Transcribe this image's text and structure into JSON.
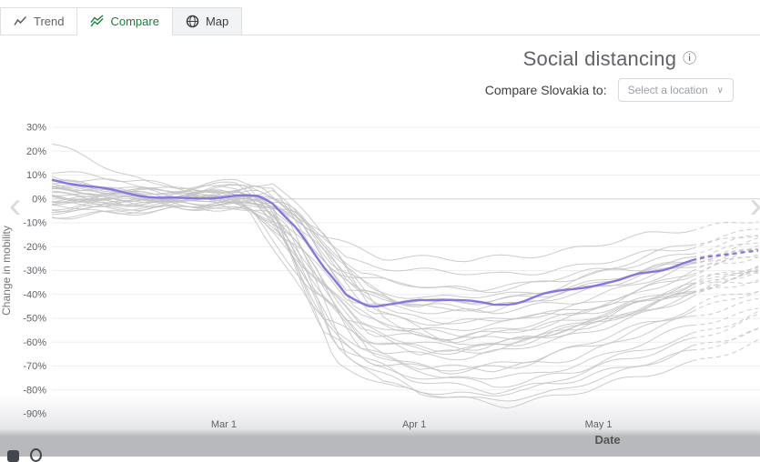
{
  "tabs": [
    {
      "label": "Trend",
      "active": false
    },
    {
      "label": "Compare",
      "active": true
    },
    {
      "label": "Map",
      "active": false
    }
  ],
  "header": {
    "title": "Social distancing",
    "info_glyph": "ⓘ"
  },
  "compare": {
    "label": "Compare Slovakia to:",
    "dropdown_placeholder": "Select a location",
    "chevron_glyph": "∨"
  },
  "navigation": {
    "prev_glyph": "‹",
    "next_glyph": "›"
  },
  "colors": {
    "accent_green": "#188038",
    "highlight_purple": "#8477e0",
    "background_line_gray": "#c3c3c3"
  },
  "chart_data": {
    "type": "line",
    "title": "Social distancing",
    "xlabel": "Date",
    "ylabel": "Change in mobility",
    "ylim": [
      -90,
      30
    ],
    "ytick_values": [
      30,
      20,
      10,
      0,
      -10,
      -20,
      -30,
      -40,
      -50,
      -60,
      -70,
      -80,
      -90
    ],
    "ytick_suffix": "%",
    "x_domain_days": [
      0,
      115
    ],
    "xticks": [
      {
        "label": "Mar 1",
        "day": 28
      },
      {
        "label": "Apr 1",
        "day": 59
      },
      {
        "label": "May 1",
        "day": 89
      }
    ],
    "dashed_from_day": 105,
    "grid": true,
    "legend_position": "none",
    "highlight_series": {
      "name": "Slovakia",
      "points": [
        [
          0,
          8
        ],
        [
          6,
          5
        ],
        [
          12,
          3
        ],
        [
          18,
          0.5
        ],
        [
          22,
          0
        ],
        [
          26,
          0.5
        ],
        [
          30,
          1
        ],
        [
          34,
          0.5
        ],
        [
          36,
          -2
        ],
        [
          40,
          -12
        ],
        [
          44,
          -28
        ],
        [
          48,
          -40
        ],
        [
          52,
          -45
        ],
        [
          56,
          -44.5
        ],
        [
          60,
          -42.5
        ],
        [
          64,
          -42
        ],
        [
          68,
          -43
        ],
        [
          72,
          -44
        ],
        [
          76,
          -43
        ],
        [
          80,
          -40
        ],
        [
          84,
          -38
        ],
        [
          88,
          -36.5
        ],
        [
          92,
          -35
        ],
        [
          96,
          -31
        ],
        [
          100,
          -29
        ],
        [
          104,
          -26
        ],
        [
          108,
          -23.5
        ],
        [
          112,
          -22
        ],
        [
          115,
          -22
        ]
      ]
    },
    "background_series": [
      [
        [
          0,
          23
        ],
        [
          8,
          14
        ],
        [
          16,
          6
        ],
        [
          24,
          6
        ],
        [
          30,
          8
        ],
        [
          36,
          4
        ],
        [
          42,
          -20
        ],
        [
          50,
          -38
        ],
        [
          60,
          -45
        ],
        [
          75,
          -42
        ],
        [
          90,
          -30
        ],
        [
          105,
          -18
        ],
        [
          115,
          -12
        ]
      ],
      [
        [
          0,
          5
        ],
        [
          15,
          2
        ],
        [
          28,
          3
        ],
        [
          36,
          -5
        ],
        [
          44,
          -55
        ],
        [
          52,
          -68
        ],
        [
          62,
          -72
        ],
        [
          75,
          -70
        ],
        [
          88,
          -60
        ],
        [
          100,
          -50
        ],
        [
          115,
          -38
        ]
      ],
      [
        [
          0,
          2
        ],
        [
          20,
          0
        ],
        [
          30,
          2
        ],
        [
          38,
          -8
        ],
        [
          46,
          -60
        ],
        [
          54,
          -78
        ],
        [
          64,
          -82
        ],
        [
          78,
          -80
        ],
        [
          90,
          -70
        ],
        [
          105,
          -58
        ],
        [
          115,
          -50
        ]
      ],
      [
        [
          0,
          -2
        ],
        [
          18,
          -1
        ],
        [
          30,
          1
        ],
        [
          40,
          -18
        ],
        [
          48,
          -52
        ],
        [
          58,
          -60
        ],
        [
          70,
          -62
        ],
        [
          85,
          -55
        ],
        [
          100,
          -42
        ],
        [
          115,
          -30
        ]
      ],
      [
        [
          0,
          6
        ],
        [
          12,
          3
        ],
        [
          24,
          1
        ],
        [
          32,
          5
        ],
        [
          40,
          -5
        ],
        [
          48,
          -35
        ],
        [
          56,
          -48
        ],
        [
          68,
          -52
        ],
        [
          82,
          -48
        ],
        [
          95,
          -40
        ],
        [
          108,
          -28
        ],
        [
          115,
          -24
        ]
      ],
      [
        [
          0,
          0
        ],
        [
          25,
          -2
        ],
        [
          35,
          -3
        ],
        [
          43,
          -30
        ],
        [
          50,
          -62
        ],
        [
          60,
          -70
        ],
        [
          72,
          -72
        ],
        [
          85,
          -66
        ],
        [
          98,
          -55
        ],
        [
          110,
          -45
        ],
        [
          115,
          -42
        ]
      ],
      [
        [
          0,
          3
        ],
        [
          20,
          1
        ],
        [
          33,
          4
        ],
        [
          41,
          -10
        ],
        [
          49,
          -45
        ],
        [
          57,
          -55
        ],
        [
          70,
          -58
        ],
        [
          84,
          -50
        ],
        [
          97,
          -38
        ],
        [
          110,
          -26
        ],
        [
          115,
          -22
        ]
      ],
      [
        [
          0,
          -5
        ],
        [
          15,
          -3
        ],
        [
          28,
          0
        ],
        [
          38,
          -15
        ],
        [
          46,
          -68
        ],
        [
          56,
          -80
        ],
        [
          68,
          -84
        ],
        [
          80,
          -82
        ],
        [
          92,
          -74
        ],
        [
          104,
          -62
        ],
        [
          115,
          -55
        ]
      ],
      [
        [
          0,
          8
        ],
        [
          10,
          5
        ],
        [
          22,
          2
        ],
        [
          32,
          6
        ],
        [
          42,
          -25
        ],
        [
          50,
          -55
        ],
        [
          60,
          -65
        ],
        [
          74,
          -62
        ],
        [
          88,
          -52
        ],
        [
          102,
          -40
        ],
        [
          115,
          -32
        ]
      ],
      [
        [
          0,
          1
        ],
        [
          20,
          -1
        ],
        [
          34,
          2
        ],
        [
          44,
          -40
        ],
        [
          52,
          -65
        ],
        [
          64,
          -72
        ],
        [
          78,
          -68
        ],
        [
          92,
          -58
        ],
        [
          106,
          -44
        ],
        [
          115,
          -38
        ]
      ],
      [
        [
          0,
          -3
        ],
        [
          18,
          -2
        ],
        [
          30,
          -1
        ],
        [
          40,
          -20
        ],
        [
          48,
          -42
        ],
        [
          58,
          -46
        ],
        [
          72,
          -48
        ],
        [
          86,
          -42
        ],
        [
          100,
          -32
        ],
        [
          115,
          -20
        ]
      ],
      [
        [
          0,
          4
        ],
        [
          14,
          2
        ],
        [
          26,
          0
        ],
        [
          36,
          3
        ],
        [
          44,
          -18
        ],
        [
          52,
          -38
        ],
        [
          62,
          -42
        ],
        [
          76,
          -40
        ],
        [
          90,
          -34
        ],
        [
          104,
          -26
        ],
        [
          115,
          -20
        ]
      ],
      [
        [
          0,
          0
        ],
        [
          22,
          1
        ],
        [
          34,
          -2
        ],
        [
          42,
          -35
        ],
        [
          50,
          -58
        ],
        [
          62,
          -64
        ],
        [
          76,
          -60
        ],
        [
          90,
          -50
        ],
        [
          104,
          -36
        ],
        [
          115,
          -28
        ]
      ],
      [
        [
          0,
          -6
        ],
        [
          16,
          -4
        ],
        [
          28,
          -2
        ],
        [
          38,
          -10
        ],
        [
          46,
          -30
        ],
        [
          56,
          -36
        ],
        [
          70,
          -38
        ],
        [
          84,
          -34
        ],
        [
          98,
          -28
        ],
        [
          112,
          -20
        ],
        [
          115,
          -18
        ]
      ],
      [
        [
          0,
          2
        ],
        [
          18,
          0
        ],
        [
          32,
          3
        ],
        [
          42,
          -28
        ],
        [
          50,
          -50
        ],
        [
          60,
          -55
        ],
        [
          74,
          -52
        ],
        [
          88,
          -44
        ],
        [
          102,
          -32
        ],
        [
          115,
          -24
        ]
      ],
      [
        [
          0,
          10
        ],
        [
          10,
          7
        ],
        [
          22,
          3
        ],
        [
          34,
          5
        ],
        [
          44,
          -15
        ],
        [
          52,
          -45
        ],
        [
          64,
          -58
        ],
        [
          78,
          -55
        ],
        [
          92,
          -46
        ],
        [
          106,
          -34
        ],
        [
          115,
          -28
        ]
      ],
      [
        [
          0,
          -1
        ],
        [
          20,
          -3
        ],
        [
          32,
          -4
        ],
        [
          42,
          -45
        ],
        [
          52,
          -70
        ],
        [
          64,
          -76
        ],
        [
          78,
          -74
        ],
        [
          92,
          -64
        ],
        [
          106,
          -52
        ],
        [
          115,
          -46
        ]
      ],
      [
        [
          0,
          3
        ],
        [
          16,
          1
        ],
        [
          30,
          4
        ],
        [
          40,
          -5
        ],
        [
          48,
          -25
        ],
        [
          58,
          -30
        ],
        [
          72,
          -32
        ],
        [
          86,
          -28
        ],
        [
          100,
          -22
        ],
        [
          115,
          -14
        ]
      ],
      [
        [
          0,
          -8
        ],
        [
          14,
          -5
        ],
        [
          26,
          -3
        ],
        [
          36,
          -8
        ],
        [
          46,
          -55
        ],
        [
          58,
          -72
        ],
        [
          72,
          -78
        ],
        [
          86,
          -72
        ],
        [
          100,
          -60
        ],
        [
          115,
          -48
        ]
      ],
      [
        [
          0,
          5
        ],
        [
          18,
          3
        ],
        [
          30,
          6
        ],
        [
          40,
          -8
        ],
        [
          48,
          -38
        ],
        [
          58,
          -44
        ],
        [
          72,
          -46
        ],
        [
          86,
          -40
        ],
        [
          100,
          -30
        ],
        [
          115,
          -22
        ]
      ],
      [
        [
          0,
          1
        ],
        [
          24,
          0
        ],
        [
          36,
          -6
        ],
        [
          44,
          -50
        ],
        [
          54,
          -64
        ],
        [
          68,
          -66
        ],
        [
          82,
          -60
        ],
        [
          96,
          -48
        ],
        [
          110,
          -36
        ],
        [
          115,
          -34
        ]
      ],
      [
        [
          0,
          -4
        ],
        [
          20,
          -2
        ],
        [
          34,
          1
        ],
        [
          44,
          -22
        ],
        [
          52,
          -48
        ],
        [
          64,
          -52
        ],
        [
          78,
          -50
        ],
        [
          92,
          -44
        ],
        [
          106,
          -36
        ],
        [
          115,
          -30
        ]
      ],
      [
        [
          0,
          7
        ],
        [
          12,
          4
        ],
        [
          26,
          1
        ],
        [
          38,
          -3
        ],
        [
          46,
          -28
        ],
        [
          56,
          -42
        ],
        [
          70,
          -44
        ],
        [
          84,
          -38
        ],
        [
          98,
          -30
        ],
        [
          112,
          -22
        ],
        [
          115,
          -20
        ]
      ],
      [
        [
          0,
          0
        ],
        [
          18,
          -2
        ],
        [
          32,
          0
        ],
        [
          42,
          -30
        ],
        [
          52,
          -56
        ],
        [
          66,
          -60
        ],
        [
          80,
          -56
        ],
        [
          94,
          -46
        ],
        [
          108,
          -34
        ],
        [
          115,
          -30
        ]
      ],
      [
        [
          0,
          -2
        ],
        [
          22,
          -4
        ],
        [
          36,
          -2
        ],
        [
          46,
          -60
        ],
        [
          58,
          -76
        ],
        [
          72,
          -80
        ],
        [
          86,
          -76
        ],
        [
          100,
          -66
        ],
        [
          115,
          -56
        ]
      ],
      [
        [
          0,
          4
        ],
        [
          16,
          2
        ],
        [
          30,
          5
        ],
        [
          42,
          -12
        ],
        [
          50,
          -40
        ],
        [
          62,
          -46
        ],
        [
          76,
          -44
        ],
        [
          90,
          -36
        ],
        [
          104,
          -26
        ],
        [
          115,
          -18
        ]
      ],
      [
        [
          0,
          -7
        ],
        [
          18,
          -5
        ],
        [
          32,
          -3
        ],
        [
          42,
          -38
        ],
        [
          52,
          -60
        ],
        [
          66,
          -64
        ],
        [
          80,
          -58
        ],
        [
          94,
          -48
        ],
        [
          108,
          -38
        ],
        [
          115,
          -34
        ]
      ],
      [
        [
          0,
          12
        ],
        [
          10,
          8
        ],
        [
          24,
          4
        ],
        [
          36,
          7
        ],
        [
          46,
          -20
        ],
        [
          54,
          -50
        ],
        [
          66,
          -62
        ],
        [
          80,
          -58
        ],
        [
          94,
          -48
        ],
        [
          108,
          -36
        ],
        [
          115,
          -30
        ]
      ],
      [
        [
          0,
          2
        ],
        [
          20,
          0
        ],
        [
          34,
          -1
        ],
        [
          44,
          -15
        ],
        [
          54,
          -24
        ],
        [
          68,
          -26
        ],
        [
          82,
          -22
        ],
        [
          96,
          -16
        ],
        [
          110,
          -10
        ],
        [
          115,
          -8
        ]
      ],
      [
        [
          0,
          -1
        ],
        [
          24,
          -2
        ],
        [
          38,
          -4
        ],
        [
          48,
          -65
        ],
        [
          60,
          -82
        ],
        [
          74,
          -86
        ],
        [
          88,
          -80
        ],
        [
          102,
          -70
        ],
        [
          115,
          -60
        ]
      ],
      [
        [
          0,
          6
        ],
        [
          14,
          4
        ],
        [
          28,
          2
        ],
        [
          40,
          -6
        ],
        [
          50,
          -32
        ],
        [
          62,
          -38
        ],
        [
          76,
          -36
        ],
        [
          90,
          -30
        ],
        [
          104,
          -22
        ],
        [
          115,
          -16
        ]
      ],
      [
        [
          0,
          -3
        ],
        [
          16,
          -1
        ],
        [
          30,
          2
        ],
        [
          40,
          -25
        ],
        [
          50,
          -52
        ],
        [
          62,
          -58
        ],
        [
          76,
          -54
        ],
        [
          90,
          -46
        ],
        [
          104,
          -36
        ],
        [
          115,
          -28
        ]
      ]
    ]
  }
}
